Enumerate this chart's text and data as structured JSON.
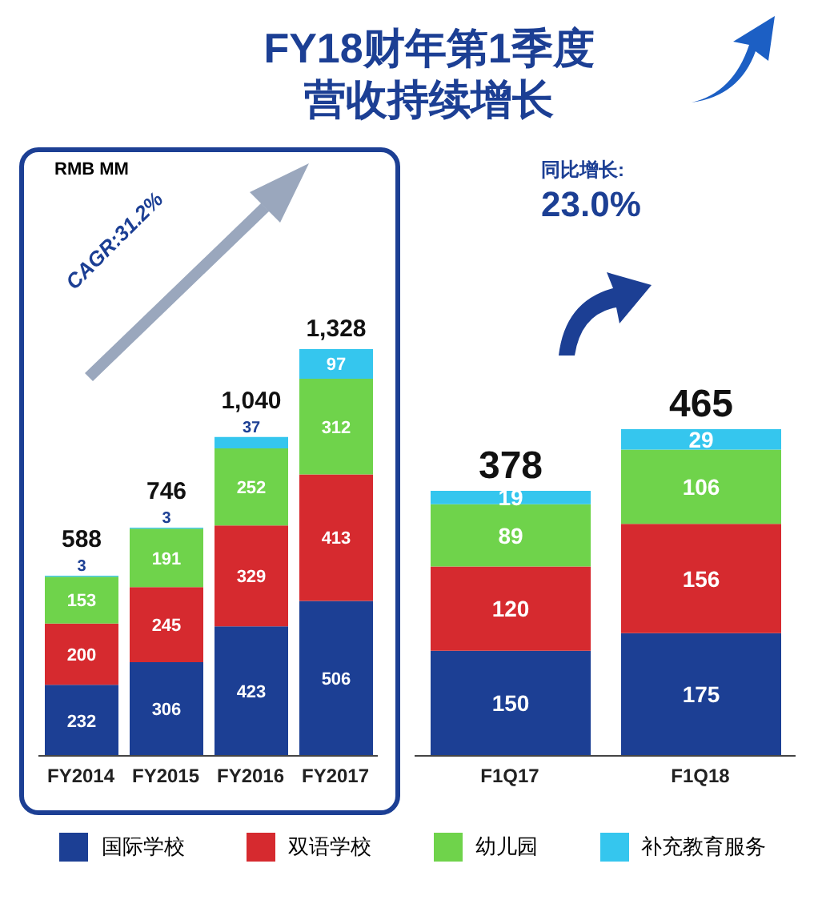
{
  "chart_data": [
    {
      "type": "bar",
      "title": "FY18财年第1季度",
      "subtitle": "营收持续增长",
      "stacked": true,
      "data_labels": true,
      "legend": "bottom",
      "categories": [
        "FY2014",
        "FY2015",
        "FY2016",
        "FY2017"
      ],
      "series": [
        {
          "name": "国际学校",
          "color": "#1c3f94",
          "values": [
            232,
            306,
            423,
            506
          ]
        },
        {
          "name": "双语学校",
          "color": "#d62a2f",
          "values": [
            200,
            245,
            329,
            413
          ]
        },
        {
          "name": "幼儿园",
          "color": "#6fd34b",
          "values": [
            153,
            191,
            252,
            312
          ]
        },
        {
          "name": "补充教育服务",
          "color": "#35c6ee",
          "values": [
            3,
            3,
            37,
            97
          ]
        }
      ],
      "totals": [
        "588",
        "746",
        "1,040",
        "1,328"
      ],
      "annotations": [
        "RMB MM",
        "CAGR:31.2%"
      ]
    },
    {
      "type": "bar",
      "stacked": true,
      "data_labels": true,
      "categories": [
        "F1Q17",
        "F1Q18"
      ],
      "series": [
        {
          "color": "#1c3f94",
          "values": [
            150,
            175
          ]
        },
        {
          "color": "#d62a2f",
          "values": [
            120,
            156
          ]
        },
        {
          "color": "#6fd34b",
          "values": [
            89,
            106
          ]
        },
        {
          "color": "#35c6ee",
          "values": [
            19,
            29
          ]
        }
      ],
      "totals": [
        "378",
        "465"
      ],
      "annotations": [
        "同比增长:",
        "23.0%"
      ]
    }
  ]
}
